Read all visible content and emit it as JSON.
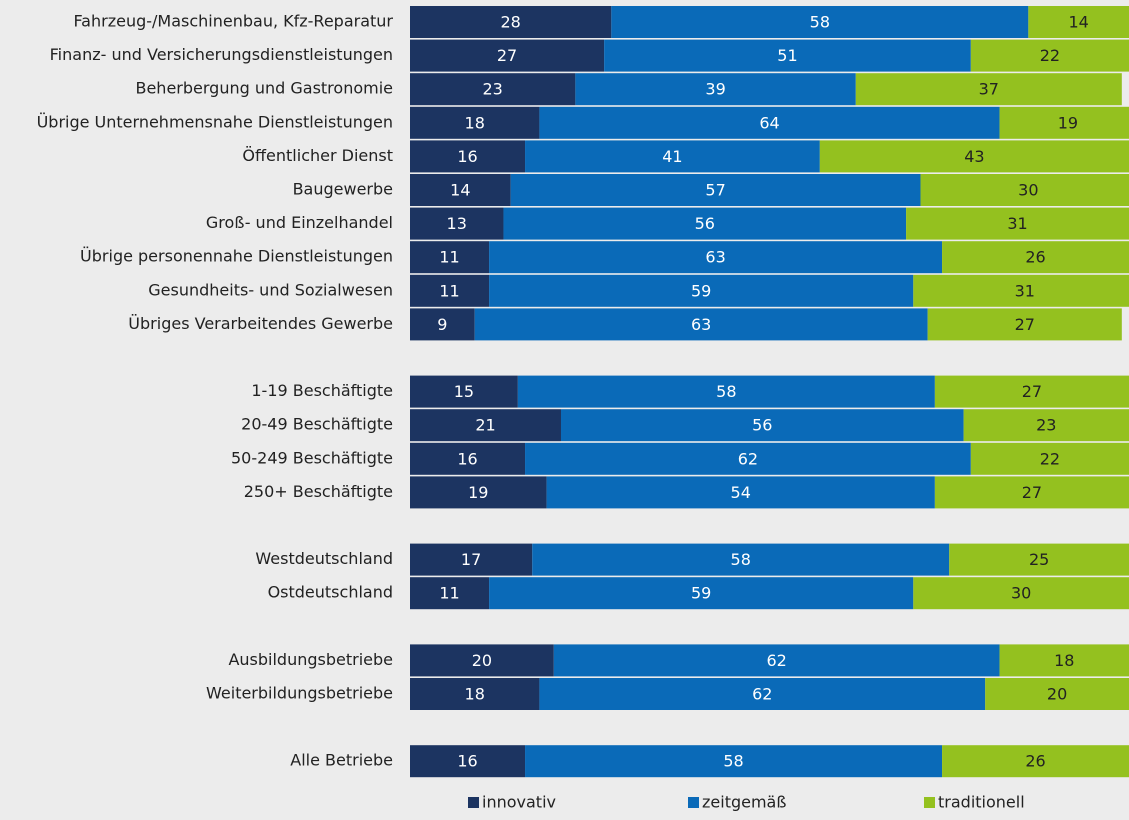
{
  "chart_data": {
    "type": "stacked-bar-horizontal",
    "categories": [
      "Fahrzeug-/Maschinenbau, Kfz-Reparatur",
      "Finanz- und Versicherungsdienstleistungen",
      "Beherbergung und Gastronomie",
      "Übrige Unternehmensnahe Dienstleistungen",
      "Öffentlicher Dienst",
      "Baugewerbe",
      "Groß- und Einzelhandel",
      "Übrige personennahe Dienstleistungen",
      "Gesundheits- und Sozialwesen",
      "Übriges Verarbeitendes Gewerbe",
      null,
      "1-19 Beschäftigte",
      "20-49 Beschäftigte",
      "50-249 Beschäftigte",
      "250+ Beschäftigte",
      null,
      "Westdeutschland",
      "Ostdeutschland",
      null,
      "Ausbildungsbetriebe",
      "Weiterbildungsbetriebe",
      null,
      "Alle Betriebe"
    ],
    "series": [
      {
        "name": "innovativ",
        "color": "#1c3461",
        "values": [
          28,
          27,
          23,
          18,
          16,
          14,
          13,
          11,
          11,
          9,
          null,
          15,
          21,
          16,
          19,
          null,
          17,
          11,
          null,
          20,
          18,
          null,
          16
        ]
      },
      {
        "name": "zeitgemäß",
        "color": "#0a6ab8",
        "values": [
          58,
          51,
          39,
          64,
          41,
          57,
          56,
          63,
          59,
          63,
          null,
          58,
          56,
          62,
          54,
          null,
          58,
          59,
          null,
          62,
          62,
          null,
          58
        ]
      },
      {
        "name": "traditionell",
        "color": "#94c11f",
        "values": [
          14,
          22,
          37,
          19,
          43,
          30,
          31,
          26,
          31,
          27,
          null,
          27,
          23,
          22,
          27,
          null,
          25,
          30,
          null,
          18,
          20,
          null,
          26
        ]
      }
    ],
    "xlim": [
      0,
      100
    ]
  }
}
